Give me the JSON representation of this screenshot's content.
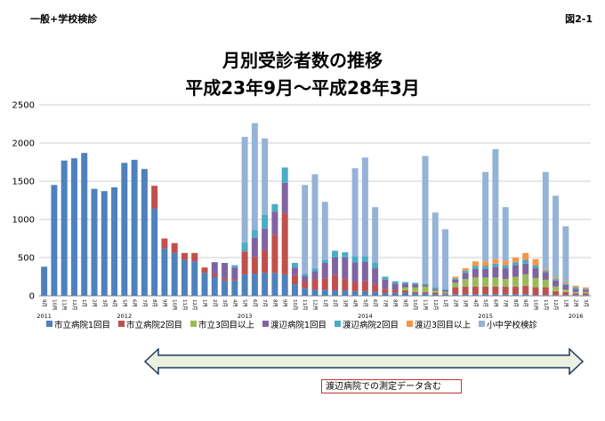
{
  "header": {
    "label_left": "一般+学校検診",
    "label_right": "図2-1"
  },
  "chart_data": {
    "type": "bar",
    "stacked": true,
    "title": "月別受診者数の推移",
    "subtitle": "平成23年9月〜平成28年3月",
    "ylim": [
      0,
      2500
    ],
    "yticks": [
      0,
      500,
      1000,
      1500,
      2000,
      2500
    ],
    "grid": true,
    "legend_position": "bottom",
    "categories": [
      "9月",
      "10月",
      "11月",
      "12月",
      "1月",
      "2月",
      "3月",
      "4月",
      "5月",
      "6月",
      "7月",
      "8月",
      "9月",
      "10月",
      "11月",
      "12月",
      "1月",
      "2月",
      "3月",
      "4月",
      "5月",
      "6月",
      "7月",
      "8月",
      "9月",
      "10月",
      "11月",
      "12月",
      "1月",
      "2月",
      "3月",
      "4月",
      "5月",
      "6月",
      "7月",
      "8月",
      "9月",
      "10月",
      "11月",
      "12月",
      "1月",
      "2月",
      "3月",
      "4月",
      "5月",
      "6月",
      "7月",
      "8月",
      "9月",
      "10月",
      "11月",
      "12月",
      "1月",
      "2月",
      "3月"
    ],
    "year_labels": [
      {
        "label": "2011",
        "index": 0
      },
      {
        "label": "2012",
        "index": 8
      },
      {
        "label": "2013",
        "index": 20
      },
      {
        "label": "2014",
        "index": 32
      },
      {
        "label": "2015",
        "index": 44
      },
      {
        "label": "2016",
        "index": 53
      }
    ],
    "series": [
      {
        "name": "市立病院1回目",
        "color": "#4f81bd",
        "values": [
          380,
          1450,
          1770,
          1800,
          1870,
          1400,
          1370,
          1420,
          1740,
          1780,
          1660,
          1140,
          620,
          560,
          470,
          450,
          300,
          250,
          200,
          200,
          280,
          290,
          300,
          300,
          280,
          150,
          100,
          80,
          80,
          70,
          70,
          60,
          60,
          50,
          40,
          40,
          40,
          30,
          30,
          20,
          20,
          20,
          20,
          20,
          20,
          20,
          20,
          20,
          20,
          10,
          10,
          10,
          10,
          10,
          10
        ]
      },
      {
        "name": "市立病院2回目",
        "color": "#c0504d",
        "values": [
          0,
          0,
          0,
          0,
          0,
          0,
          0,
          0,
          0,
          0,
          0,
          300,
          130,
          130,
          90,
          110,
          70,
          40,
          30,
          20,
          300,
          220,
          300,
          500,
          800,
          120,
          80,
          140,
          150,
          200,
          150,
          120,
          130,
          100,
          50,
          40,
          30,
          20,
          20,
          20,
          10,
          90,
          100,
          100,
          100,
          100,
          100,
          100,
          110,
          100,
          100,
          50,
          40,
          20,
          20
        ]
      },
      {
        "name": "市立3回目以上",
        "color": "#9bbb59",
        "values": [
          0,
          0,
          0,
          0,
          0,
          0,
          0,
          0,
          0,
          0,
          0,
          0,
          0,
          0,
          0,
          0,
          0,
          0,
          0,
          0,
          0,
          0,
          0,
          0,
          0,
          0,
          0,
          0,
          0,
          0,
          0,
          0,
          0,
          0,
          0,
          0,
          40,
          60,
          70,
          30,
          20,
          60,
          100,
          120,
          120,
          120,
          100,
          130,
          150,
          120,
          100,
          60,
          30,
          20,
          20
        ]
      },
      {
        "name": "渡辺病院1回目",
        "color": "#8064a2",
        "values": [
          0,
          0,
          0,
          0,
          0,
          0,
          0,
          0,
          0,
          0,
          0,
          0,
          0,
          0,
          0,
          0,
          0,
          150,
          200,
          150,
          0,
          250,
          280,
          300,
          400,
          100,
          80,
          100,
          200,
          230,
          280,
          260,
          260,
          210,
          120,
          80,
          50,
          40,
          20,
          20,
          20,
          40,
          80,
          110,
          110,
          140,
          140,
          150,
          140,
          130,
          100,
          80,
          60,
          40,
          30
        ]
      },
      {
        "name": "渡辺病院2回目",
        "color": "#4bacc6",
        "values": [
          0,
          0,
          0,
          0,
          0,
          0,
          0,
          0,
          0,
          0,
          0,
          0,
          0,
          0,
          0,
          0,
          0,
          0,
          0,
          30,
          120,
          100,
          180,
          100,
          200,
          60,
          30,
          40,
          40,
          90,
          70,
          80,
          70,
          70,
          40,
          30,
          20,
          20,
          20,
          20,
          20,
          20,
          30,
          40,
          40,
          40,
          40,
          40,
          50,
          40,
          20,
          20,
          20,
          20,
          10
        ]
      },
      {
        "name": "渡辺3回目以上",
        "color": "#f79646",
        "values": [
          0,
          0,
          0,
          0,
          0,
          0,
          0,
          0,
          0,
          0,
          0,
          0,
          0,
          0,
          0,
          0,
          0,
          0,
          0,
          0,
          0,
          0,
          0,
          0,
          0,
          0,
          0,
          0,
          0,
          0,
          0,
          0,
          0,
          0,
          0,
          0,
          0,
          0,
          0,
          0,
          0,
          20,
          30,
          60,
          60,
          60,
          60,
          60,
          90,
          80,
          20,
          20,
          20,
          20,
          20
        ]
      },
      {
        "name": "小中学校検診",
        "color": "#95b3d7",
        "values": [
          0,
          0,
          0,
          0,
          0,
          0,
          0,
          0,
          0,
          0,
          0,
          0,
          0,
          0,
          0,
          0,
          0,
          0,
          0,
          0,
          1380,
          1400,
          1000,
          0,
          0,
          0,
          1160,
          1230,
          760,
          0,
          0,
          1150,
          1290,
          730,
          0,
          0,
          0,
          0,
          1670,
          980,
          780,
          0,
          0,
          0,
          1170,
          1440,
          700,
          0,
          0,
          0,
          1270,
          1070,
          730,
          0,
          0
        ]
      }
    ]
  },
  "note": "渡辺病院での測定データ含む"
}
